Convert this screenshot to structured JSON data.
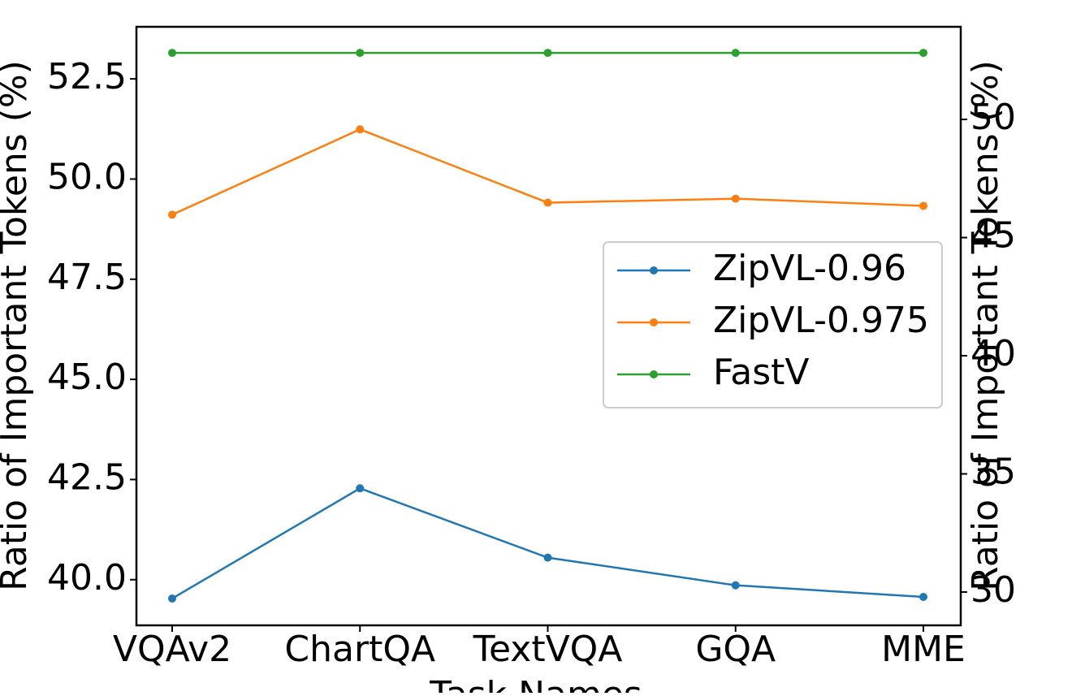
{
  "chart_data": {
    "type": "line",
    "xlabel": "Task Names",
    "ylabel": "Ratio of Important Tokens (%)",
    "y2label": "Ratio of Important Tokens (%)",
    "categories": [
      "VQAv2",
      "ChartQA",
      "TextVQA",
      "GQA",
      "MME"
    ],
    "series": [
      {
        "name": "ZipVL-0.96",
        "color": "#1f77b4",
        "values": [
          39.53,
          42.28,
          40.55,
          39.86,
          39.57
        ]
      },
      {
        "name": "ZipVL-0.975",
        "color": "#ff7f0e",
        "values": [
          49.11,
          51.24,
          49.41,
          49.51,
          49.33
        ]
      },
      {
        "name": "FastV",
        "color": "#2ca02c",
        "values": [
          53.15,
          53.15,
          53.15,
          53.15,
          53.15
        ]
      }
    ],
    "ylim": [
      38.86,
      53.8
    ],
    "yticks": [
      {
        "value": 40,
        "label": "40.0"
      },
      42.5,
      {
        "value": 45,
        "label": "45.0"
      },
      47.5,
      {
        "value": 50,
        "label": "50.0"
      },
      52.5
    ],
    "y2lim": [
      28.59,
      53.92
    ],
    "y2ticks": [
      30,
      35,
      40,
      45,
      50
    ],
    "legend": "right"
  }
}
